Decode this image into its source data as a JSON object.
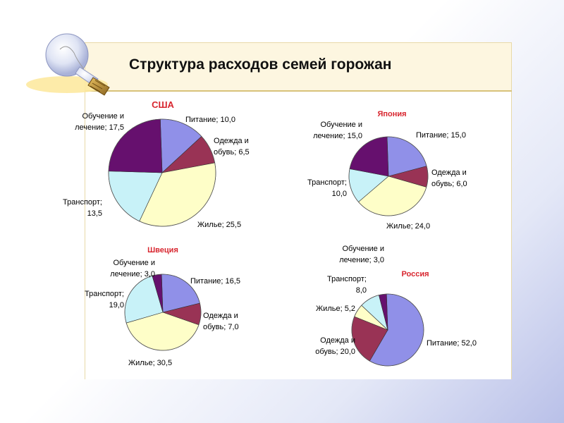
{
  "title": "Структура расходов семей горожан",
  "colors": {
    "food": "#9090e8",
    "clothes": "#993355",
    "housing": "#fefec8",
    "transport": "#c8f2f8",
    "education": "#66106e",
    "country_title": "#d8262f"
  },
  "chart_data": [
    {
      "type": "pie",
      "title": "США",
      "categories": [
        "Питание",
        "Одежда и обувь",
        "Жилье",
        "Транспорт",
        "Обучение и лечение"
      ],
      "values": [
        10.0,
        6.5,
        25.5,
        13.5,
        17.5
      ],
      "labels": [
        "Питание; 10,0",
        "Одежда и|обувь; 6,5",
        "Жилье; 25,5",
        "Транспорт;|13,5",
        "Обучение и|лечение; 17,5"
      ]
    },
    {
      "type": "pie",
      "title": "Япония",
      "categories": [
        "Питание",
        "Одежда и обувь",
        "Жилье",
        "Транспорт",
        "Обучение и лечение"
      ],
      "values": [
        15.0,
        6.0,
        24.0,
        10.0,
        15.0
      ],
      "labels": [
        "Питание; 15,0",
        "Одежда и|обувь; 6,0",
        "Жилье; 24,0",
        "Транспорт;|10,0",
        "Обучение и|лечение; 15,0"
      ]
    },
    {
      "type": "pie",
      "title": "Швеция",
      "categories": [
        "Питание",
        "Одежда и обувь",
        "Жилье",
        "Транспорт",
        "Обучение и лечение"
      ],
      "values": [
        16.5,
        7.0,
        30.5,
        19.0,
        3.0
      ],
      "labels": [
        "Питание; 16,5",
        "Одежда и|обувь; 7,0",
        "Жилье; 30,5",
        "Транспорт;|19,0",
        "Обучение и|лечение; 3,0"
      ]
    },
    {
      "type": "pie",
      "title": "Россия",
      "categories": [
        "Питание",
        "Одежда и обувь",
        "Жилье",
        "Транспорт",
        "Обучение и лечение"
      ],
      "values": [
        52.0,
        20.0,
        5.2,
        8.0,
        3.0
      ],
      "labels": [
        "Питание; 52,0",
        "Одежда и|обувь; 20,0",
        "Жилье; 5,2",
        "Транспорт;|8,0",
        "Обучение и|лечение; 3,0"
      ]
    }
  ]
}
